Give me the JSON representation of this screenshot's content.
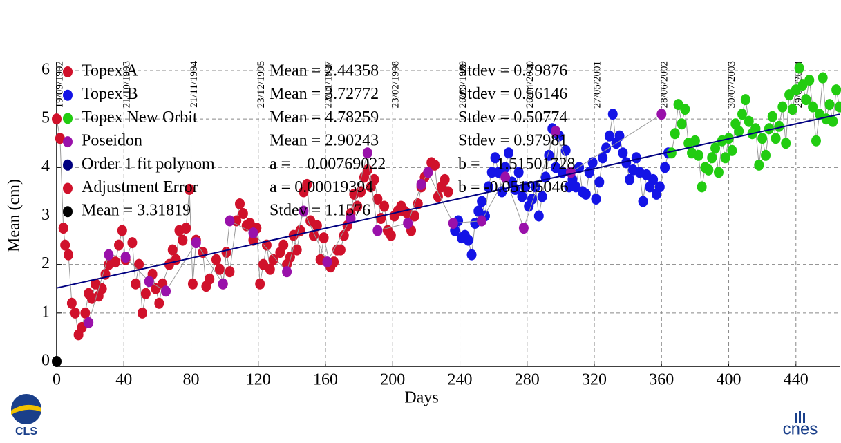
{
  "chart_data": {
    "type": "scatter",
    "x_label": "Days",
    "y_label": "Mean (cm)",
    "xlim": [
      0,
      466
    ],
    "ylim": [
      -0.1,
      6.1
    ],
    "xticks": [
      0,
      40,
      80,
      120,
      160,
      200,
      240,
      280,
      320,
      360,
      400,
      440
    ],
    "yticks": [
      0,
      1,
      2,
      3,
      4,
      5,
      6
    ],
    "top_xticks": [
      {
        "value": 0,
        "label": "19/09/1992"
      },
      {
        "value": 40,
        "label": "21/10/1993"
      },
      {
        "value": 80,
        "label": "21/11/1994"
      },
      {
        "value": 120,
        "label": "23/12/1995"
      },
      {
        "value": 160,
        "label": "22/01/1997"
      },
      {
        "value": 200,
        "label": "23/02/1998"
      },
      {
        "value": 240,
        "label": "26/03/1999"
      },
      {
        "value": 280,
        "label": "26/04/2000"
      },
      {
        "value": 320,
        "label": "27/05/2001"
      },
      {
        "value": 360,
        "label": "28/06/2002"
      },
      {
        "value": 400,
        "label": "30/07/2003"
      },
      {
        "value": 440,
        "label": "29/08/2004"
      }
    ],
    "grid": true,
    "series": [
      {
        "name": "Topex A",
        "color": "#d0112b",
        "stats": [
          "Mean = 2.44358",
          "Stdev = 0.79876"
        ],
        "x": [
          0,
          2,
          4,
          5,
          7,
          9,
          11,
          13,
          15,
          17,
          19,
          21,
          23,
          25,
          27,
          29,
          31,
          35,
          37,
          39,
          41,
          45,
          47,
          49,
          51,
          53,
          57,
          59,
          61,
          63,
          67,
          69,
          71,
          73,
          75,
          77,
          79,
          81,
          83,
          87,
          89,
          91,
          95,
          97,
          99,
          101,
          103,
          107,
          109,
          111,
          113,
          115,
          117,
          119,
          121,
          123,
          125,
          127,
          129,
          133,
          135,
          137,
          139,
          141,
          143,
          145,
          147,
          149,
          151,
          153,
          155,
          157,
          159,
          163,
          165,
          167,
          169,
          171,
          173,
          175,
          177,
          179,
          181,
          183,
          185,
          187,
          189,
          191,
          193,
          195,
          197,
          199,
          201,
          203,
          205,
          207,
          209,
          211,
          213,
          215,
          217,
          219,
          221,
          223,
          225,
          227,
          229,
          231,
          233
        ],
        "values": [
          5.0,
          4.6,
          2.75,
          2.4,
          2.2,
          1.2,
          1.0,
          0.55,
          0.7,
          1.0,
          1.4,
          1.3,
          1.6,
          1.35,
          1.5,
          1.8,
          2.0,
          2.05,
          2.4,
          2.7,
          2.1,
          2.45,
          1.6,
          2.0,
          1.0,
          1.4,
          1.8,
          1.5,
          1.2,
          1.6,
          2.0,
          2.3,
          2.1,
          2.7,
          2.5,
          2.75,
          3.55,
          1.6,
          2.5,
          2.25,
          1.55,
          1.7,
          2.1,
          1.9,
          1.6,
          2.25,
          1.85,
          2.9,
          3.25,
          3.05,
          2.8,
          2.85,
          2.5,
          2.75,
          1.6,
          2.0,
          2.4,
          1.9,
          2.1,
          2.25,
          2.4,
          2.0,
          2.15,
          2.6,
          2.3,
          2.7,
          3.5,
          3.65,
          2.9,
          2.6,
          2.8,
          2.1,
          2.55,
          1.95,
          2.05,
          2.3,
          2.3,
          2.6,
          2.8,
          3.05,
          3.45,
          3.2,
          3.5,
          3.8,
          3.95,
          3.6,
          3.75,
          3.35,
          2.95,
          3.2,
          2.7,
          2.6,
          3.0,
          3.1,
          3.2,
          3.1,
          3.05,
          2.7,
          3.0,
          3.25,
          3.6,
          3.8,
          3.9,
          4.1,
          4.05,
          3.4,
          3.6,
          3.75,
          3.5
        ]
      },
      {
        "name": "Topex B",
        "color": "#1414e6",
        "stats": [
          "Mean = 3.72772",
          "Stdev = 0.56146"
        ],
        "x": [
          237,
          239,
          241,
          243,
          245,
          247,
          249,
          251,
          253,
          255,
          257,
          259,
          261,
          263,
          265,
          267,
          269,
          271,
          273,
          275,
          277,
          279,
          281,
          283,
          285,
          287,
          289,
          291,
          293,
          295,
          297,
          299,
          301,
          303,
          305,
          307,
          309,
          311,
          313,
          315,
          317,
          319,
          321,
          323,
          325,
          327,
          329,
          331,
          333,
          335,
          337,
          339,
          341,
          343,
          345,
          347,
          349,
          351,
          353,
          355,
          357,
          359,
          362,
          364
        ],
        "values": [
          2.7,
          2.9,
          2.55,
          2.6,
          2.5,
          2.2,
          2.85,
          3.1,
          3.3,
          3.0,
          3.6,
          3.9,
          4.2,
          3.9,
          3.5,
          4.0,
          4.3,
          3.7,
          3.55,
          3.9,
          3.4,
          3.6,
          3.2,
          3.35,
          3.6,
          3.0,
          3.4,
          3.8,
          4.25,
          4.8,
          4.0,
          4.65,
          3.9,
          4.35,
          3.6,
          3.75,
          3.6,
          4.0,
          3.5,
          3.45,
          3.9,
          4.1,
          3.35,
          3.7,
          4.2,
          4.4,
          4.65,
          5.1,
          4.5,
          4.65,
          4.3,
          4.1,
          3.75,
          3.95,
          4.2,
          3.9,
          3.3,
          3.85,
          3.6,
          3.75,
          3.45,
          3.6,
          4.0,
          4.3
        ]
      },
      {
        "name": "Topex New Orbit",
        "color": "#22cc11",
        "stats": [
          "Mean = 4.78259",
          "Stdev = 0.50774"
        ],
        "x": [
          366,
          368,
          370,
          372,
          374,
          376,
          378,
          380,
          382,
          384,
          386,
          388,
          390,
          392,
          394,
          396,
          398,
          400,
          402,
          404,
          406,
          408,
          410,
          412,
          414,
          416,
          418,
          420,
          422,
          424,
          426,
          428,
          430,
          432,
          434,
          436,
          438,
          440,
          442,
          444,
          446,
          448,
          450,
          452,
          454,
          456,
          458,
          460,
          462,
          464,
          466
        ],
        "values": [
          4.3,
          4.7,
          5.3,
          4.9,
          5.2,
          4.5,
          4.3,
          4.55,
          4.25,
          3.6,
          4.0,
          3.95,
          4.2,
          4.4,
          3.9,
          4.55,
          4.2,
          4.6,
          4.35,
          4.9,
          4.75,
          5.1,
          5.4,
          4.95,
          4.7,
          4.8,
          4.05,
          4.6,
          4.25,
          4.8,
          5.05,
          4.6,
          4.85,
          5.25,
          4.5,
          5.5,
          5.2,
          5.6,
          6.05,
          5.7,
          5.4,
          5.8,
          5.25,
          4.55,
          5.1,
          5.85,
          5.0,
          5.3,
          4.95,
          5.6,
          5.25
        ]
      },
      {
        "name": "Poseidon",
        "color": "#9911aa",
        "stats": [
          "Mean = 2.90243",
          "Stdev = 0.97981"
        ],
        "x": [
          19,
          31,
          41,
          55,
          65,
          83,
          99,
          103,
          117,
          137,
          147,
          161,
          175,
          185,
          191,
          209,
          217,
          221,
          236,
          253,
          267,
          278,
          297,
          306,
          360
        ],
        "values": [
          0.8,
          2.2,
          2.15,
          1.65,
          1.45,
          2.45,
          1.6,
          2.9,
          2.65,
          1.85,
          3.1,
          2.05,
          2.95,
          4.3,
          2.7,
          2.85,
          3.65,
          3.9,
          2.85,
          2.9,
          3.8,
          2.75,
          4.75,
          3.9,
          5.1
        ]
      },
      {
        "name": "Order 1 fit polynom",
        "color": "#000080",
        "style": "line",
        "stats": [
          "a =    0.00769022",
          "b =    1.51501728"
        ],
        "x": [
          0,
          466
        ],
        "values": [
          1.515,
          5.099
        ]
      },
      {
        "name": "Adjustment Error",
        "color": "#d0112b",
        "stats": [
          "a = 0.00019394",
          "b = -0.05195046"
        ]
      },
      {
        "name": "Mean = 3.31819",
        "color": "#000000",
        "stats": [
          "Stdev = 1.1576"
        ],
        "x": [
          0
        ],
        "values": [
          0
        ]
      }
    ]
  },
  "logos": {
    "left": "CLS",
    "right": "cnes"
  }
}
